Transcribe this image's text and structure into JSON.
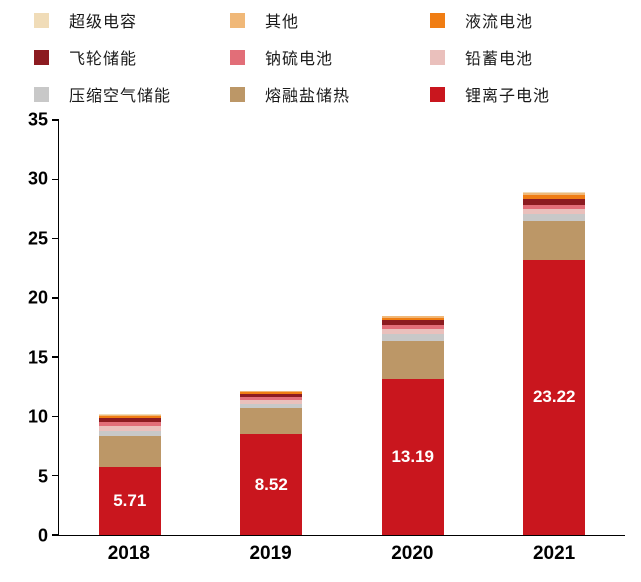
{
  "chart_data": {
    "type": "bar",
    "subtype": "stacked",
    "title": "",
    "xlabel": "",
    "ylabel": "",
    "categories": [
      "2018",
      "2019",
      "2020",
      "2021"
    ],
    "series": [
      {
        "name": "锂离子电池",
        "color": "#C9161E",
        "values": [
          5.71,
          8.52,
          13.19,
          23.22
        ]
      },
      {
        "name": "熔融盐储热",
        "color": "#BC9767",
        "values": [
          2.6,
          2.2,
          3.2,
          3.3
        ]
      },
      {
        "name": "压缩空气储能",
        "color": "#C8C8C8",
        "values": [
          0.5,
          0.35,
          0.55,
          0.55
        ]
      },
      {
        "name": "铅蓄电池",
        "color": "#EAC0BC",
        "values": [
          0.4,
          0.3,
          0.45,
          0.45
        ]
      },
      {
        "name": "钠硫电池",
        "color": "#E26E78",
        "values": [
          0.3,
          0.25,
          0.35,
          0.35
        ]
      },
      {
        "name": "飞轮储能",
        "color": "#8C1B20",
        "values": [
          0.4,
          0.3,
          0.4,
          0.5
        ]
      },
      {
        "name": "液流电池",
        "color": "#F07D13",
        "values": [
          0.15,
          0.12,
          0.2,
          0.3
        ]
      },
      {
        "name": "其他",
        "color": "#F0B878",
        "values": [
          0.1,
          0.08,
          0.1,
          0.15
        ]
      },
      {
        "name": "超级电容",
        "color": "#F0DCB8",
        "values": [
          0.05,
          0.05,
          0.05,
          0.1
        ]
      }
    ],
    "bar_labels": [
      "5.71",
      "8.52",
      "13.19",
      "23.22"
    ],
    "ylim": [
      0,
      35
    ],
    "yticks": [
      0,
      5,
      10,
      15,
      20,
      25,
      30,
      35
    ],
    "grid": false,
    "legend_position": "top",
    "legend_order": [
      "超级电容",
      "其他",
      "液流电池",
      "飞轮储能",
      "钠硫电池",
      "铅蓄电池",
      "压缩空气储能",
      "熔融盐储热",
      "锂离子电池"
    ]
  }
}
